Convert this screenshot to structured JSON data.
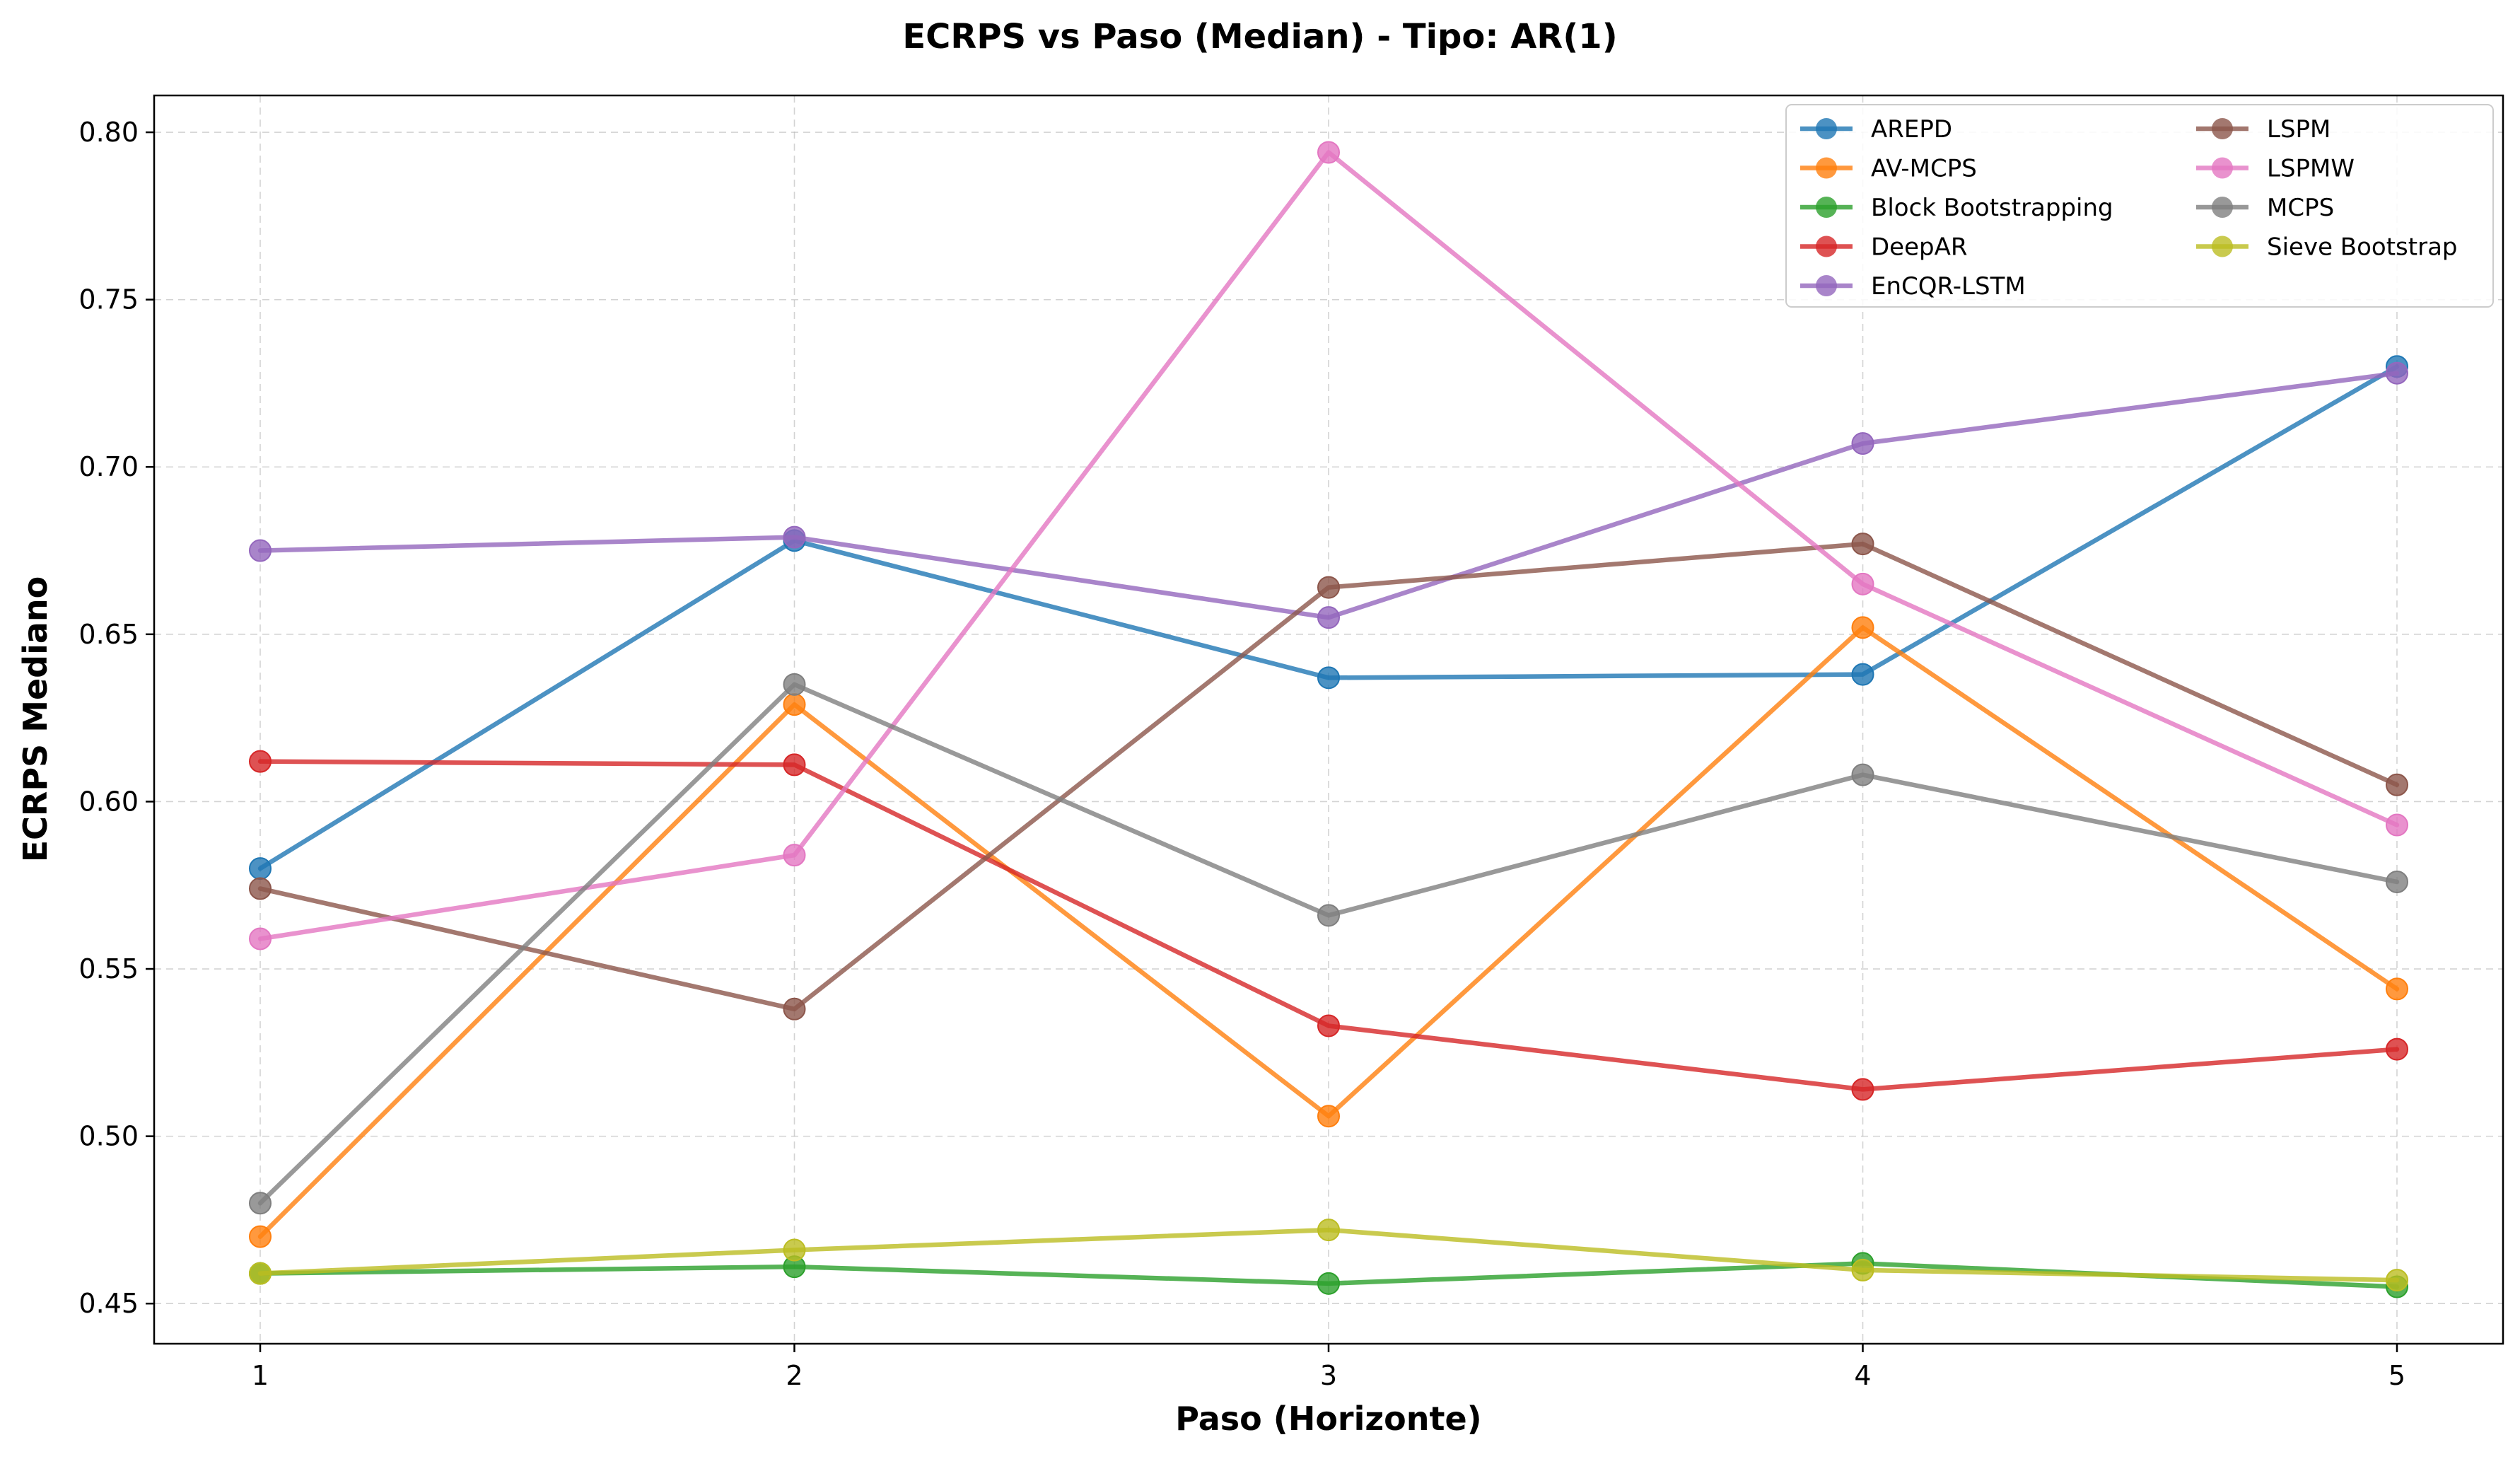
{
  "chart_data": {
    "type": "line",
    "title": "ECRPS vs Paso (Median) - Tipo: AR(1)",
    "xlabel": "Paso (Horizonte)",
    "ylabel": "ECRPS Mediano",
    "x": [
      1,
      2,
      3,
      4,
      5
    ],
    "xtick_labels": [
      "1",
      "2",
      "3",
      "4",
      "5"
    ],
    "ylim": [
      0.438,
      0.811
    ],
    "yticks": [
      0.45,
      0.5,
      0.55,
      0.6,
      0.65,
      0.7,
      0.75,
      0.8
    ],
    "ytick_labels": [
      "0.45",
      "0.50",
      "0.55",
      "0.60",
      "0.65",
      "0.70",
      "0.75",
      "0.80"
    ],
    "grid": true,
    "legend": {
      "placement": "top-right",
      "columns": 2
    },
    "series": [
      {
        "name": "AREPD",
        "color": "#1f77b4",
        "values": [
          0.58,
          0.678,
          0.637,
          0.638,
          0.73
        ]
      },
      {
        "name": "AV-MCPS",
        "color": "#ff7f0e",
        "values": [
          0.47,
          0.629,
          0.506,
          0.652,
          0.544
        ]
      },
      {
        "name": "Block Bootstrapping",
        "color": "#2ca02c",
        "values": [
          0.459,
          0.461,
          0.456,
          0.462,
          0.455
        ]
      },
      {
        "name": "DeepAR",
        "color": "#d62728",
        "values": [
          0.612,
          0.611,
          0.533,
          0.514,
          0.526
        ]
      },
      {
        "name": "EnCQR-LSTM",
        "color": "#9467bd",
        "values": [
          0.675,
          0.679,
          0.655,
          0.707,
          0.728
        ]
      },
      {
        "name": "LSPM",
        "color": "#8c564b",
        "values": [
          0.574,
          0.538,
          0.664,
          0.677,
          0.605
        ]
      },
      {
        "name": "LSPMW",
        "color": "#e377c2",
        "values": [
          0.559,
          0.584,
          0.794,
          0.665,
          0.593
        ]
      },
      {
        "name": "MCPS",
        "color": "#7f7f7f",
        "values": [
          0.48,
          0.635,
          0.566,
          0.608,
          0.576
        ]
      },
      {
        "name": "Sieve Bootstrap",
        "color": "#bcbd22",
        "values": [
          0.459,
          0.466,
          0.472,
          0.46,
          0.457
        ]
      }
    ]
  }
}
